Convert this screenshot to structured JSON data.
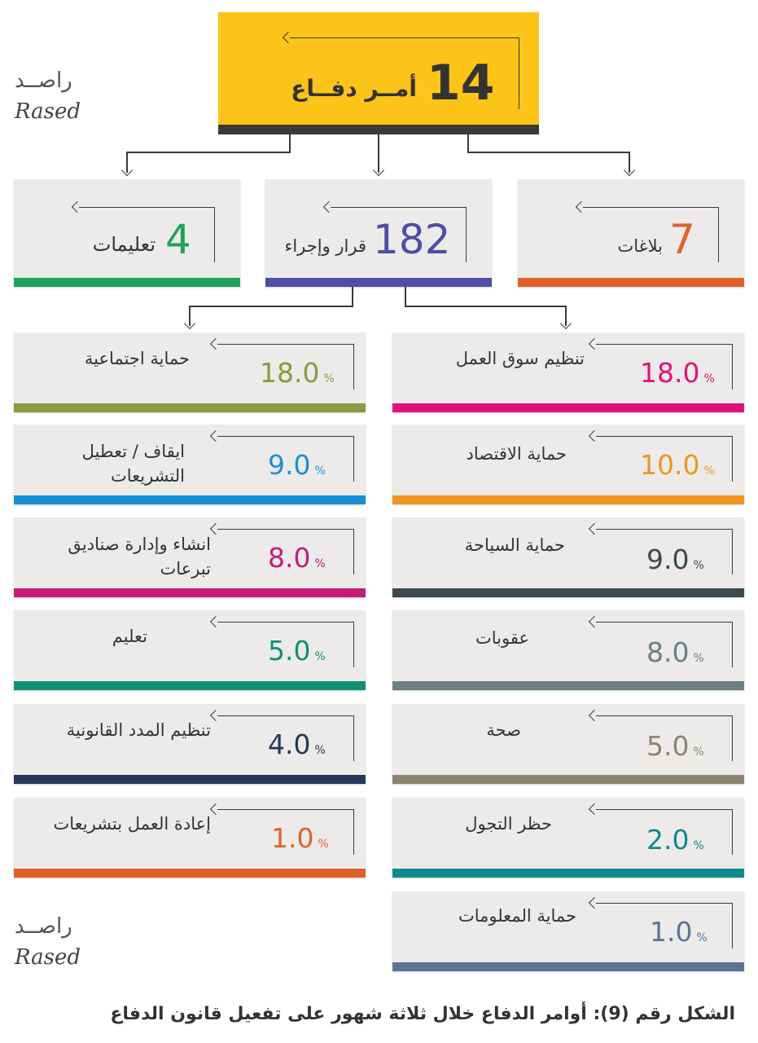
{
  "top": {
    "value": "14",
    "label": "أمــر دفــاع",
    "color": "#fcc419",
    "bar_color": "#3a3a3a"
  },
  "level2": [
    {
      "value": "4",
      "label": "تعليمات",
      "color": "#1fa25a"
    },
    {
      "value": "182",
      "label": "قرار وإجراء",
      "color": "#4f4ea6"
    },
    {
      "value": "7",
      "label": "بلاغات",
      "color": "#e0602a"
    }
  ],
  "left_column": [
    {
      "label": "حماية اجتماعية",
      "value": "18.0",
      "pct": "%",
      "color": "#8c9a3e"
    },
    {
      "label": "ايقاف / تعطيل\nالتشريعات",
      "value": "9.0",
      "pct": "%",
      "color": "#1a8fd6"
    },
    {
      "label": "انشاء وإدارة صناديق\nتبرعات",
      "value": "8.0",
      "pct": "%",
      "color": "#c41c7a"
    },
    {
      "label": "تعليم",
      "value": "5.0",
      "pct": "%",
      "color": "#0f8f76"
    },
    {
      "label": "تنظيم المدد القانونية",
      "value": "4.0",
      "pct": "%",
      "color": "#253858"
    },
    {
      "label": "إعادة العمل بتشريعات",
      "value": "1.0",
      "pct": "%",
      "color": "#e0602a"
    }
  ],
  "right_column": [
    {
      "label": "تنظيم سوق العمل",
      "value": "18.0",
      "pct": "%",
      "color": "#e0127a"
    },
    {
      "label": "حماية الاقتصاد",
      "value": "10.0",
      "pct": "%",
      "color": "#f0961e"
    },
    {
      "label": "حماية السياحة",
      "value": "9.0",
      "pct": "%",
      "color": "#3b4a4c"
    },
    {
      "label": "عقوبات",
      "value": "8.0",
      "pct": "%",
      "color": "#6d7f85"
    },
    {
      "label": "صحة",
      "value": "5.0",
      "pct": "%",
      "color": "#8c8470"
    },
    {
      "label": "حظر التجول",
      "value": "2.0",
      "pct": "%",
      "color": "#0d8a8e"
    },
    {
      "label": "حماية المعلومات",
      "value": "1.0",
      "pct": "%",
      "color": "#5b7397"
    }
  ],
  "logo": {
    "arabic": "راصــد",
    "english": "Rased"
  },
  "caption": "الشكل رقم (9): أوامر الدفاع خلال ثلاثة شهور على تفعيل قانون الدفاع"
}
